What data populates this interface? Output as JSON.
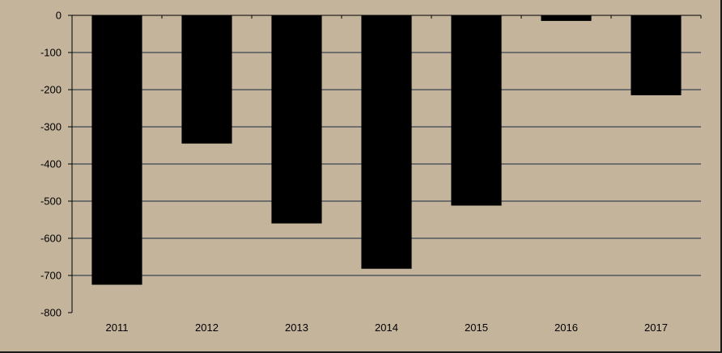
{
  "chart_data": {
    "type": "bar",
    "categories": [
      "2011",
      "2012",
      "2013",
      "2014",
      "2015",
      "2016",
      "2017"
    ],
    "values": [
      -725,
      -345,
      -560,
      -682,
      -512,
      -15,
      -215
    ],
    "title": "",
    "xlabel": "",
    "ylabel": "",
    "ylim": [
      -800,
      0
    ],
    "yticks": [
      0,
      -100,
      -200,
      -300,
      -400,
      -500,
      -600,
      -700,
      -800
    ],
    "ytick_labels": [
      "0",
      "-100",
      "-200",
      "-300",
      "-400",
      "-500",
      "-600",
      "-700",
      "-800"
    ],
    "grid": true,
    "legend": "none",
    "colors": {
      "background": "#c4b49c",
      "bar": "#000000",
      "gridline": "#6e6e6e",
      "axis": "#000000"
    }
  }
}
